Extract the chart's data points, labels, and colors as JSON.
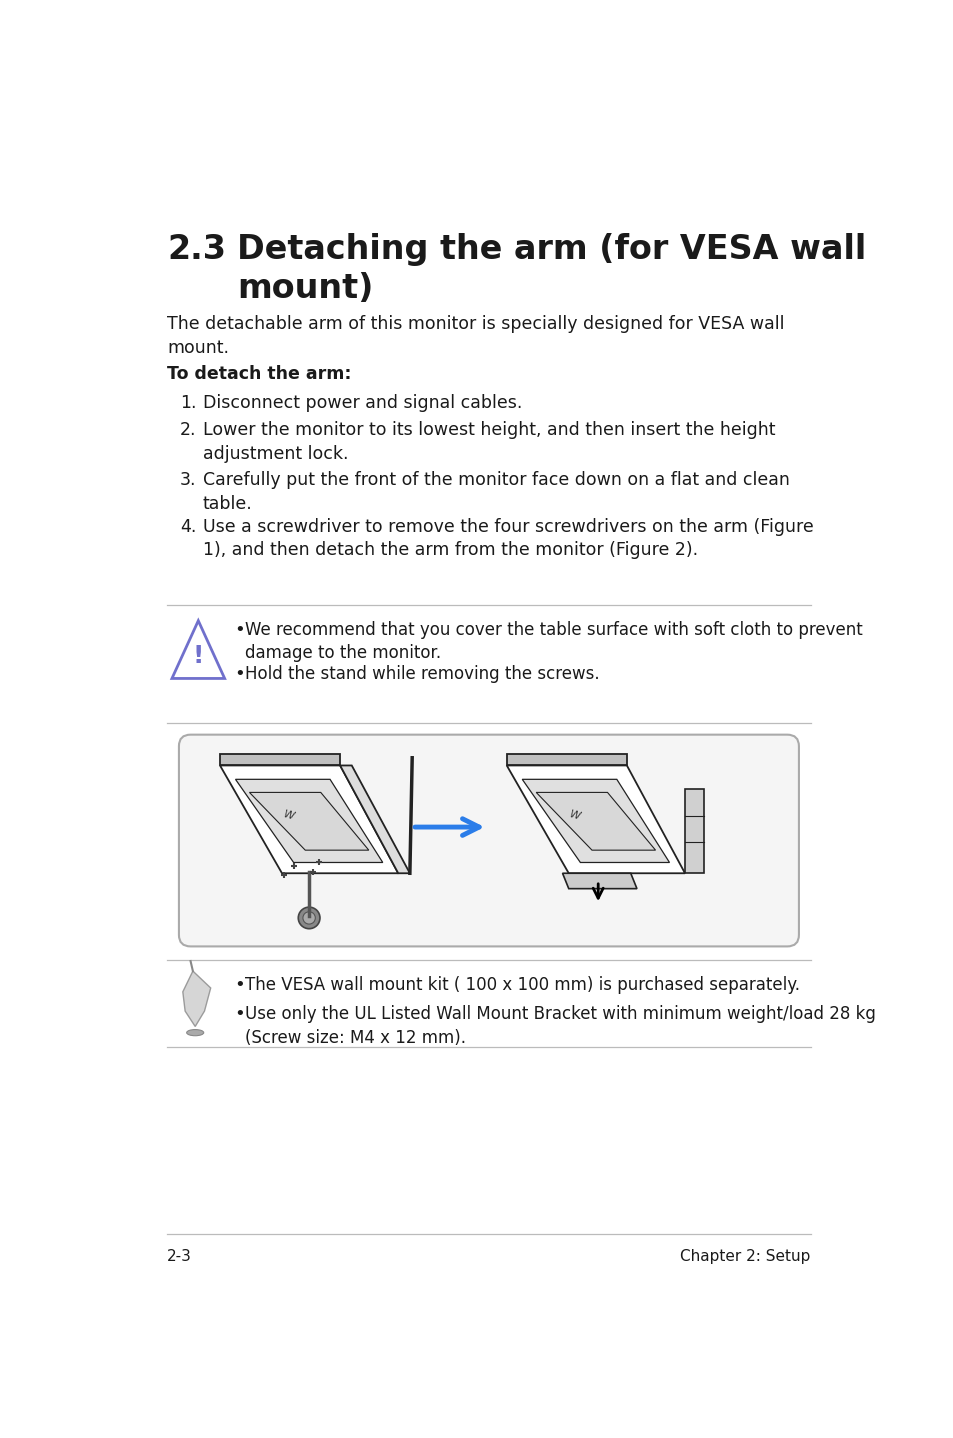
{
  "bg_color": "#ffffff",
  "title_number": "2.3",
  "title_text": "Detaching the arm (for VESA wall\nmount)",
  "intro_text": "The detachable arm of this monitor is specially designed for VESA wall\nmount.",
  "bold_label": "To detach the arm:",
  "steps": [
    "Disconnect power and signal cables.",
    "Lower the monitor to its lowest height, and then insert the height\nadjustment lock.",
    "Carefully put the front of the monitor face down on a flat and clean\ntable.",
    "Use a screwdriver to remove the four screwdrivers on the arm (Figure\n1), and then detach the arm from the monitor (Figure 2)."
  ],
  "warning_bullets": [
    "We recommend that you cover the table surface with soft cloth to prevent\ndamage to the monitor.",
    "Hold the stand while removing the screws."
  ],
  "note_bullets": [
    "The VESA wall mount kit ( 100 x 100 mm) is purchased separately.",
    "Use only the UL Listed Wall Mount Bracket with minimum weight/load 28 kg\n(Screw size: M4 x 12 mm)."
  ],
  "footer_left": "2-3",
  "footer_right": "Chapter 2: Setup",
  "warning_color": "#7070cc",
  "arrow_color": "#2b7de9",
  "box_border_color": "#aaaaaa",
  "line_color": "#bbbbbb",
  "text_color": "#1a1a1a",
  "note_icon_color": "#999999"
}
